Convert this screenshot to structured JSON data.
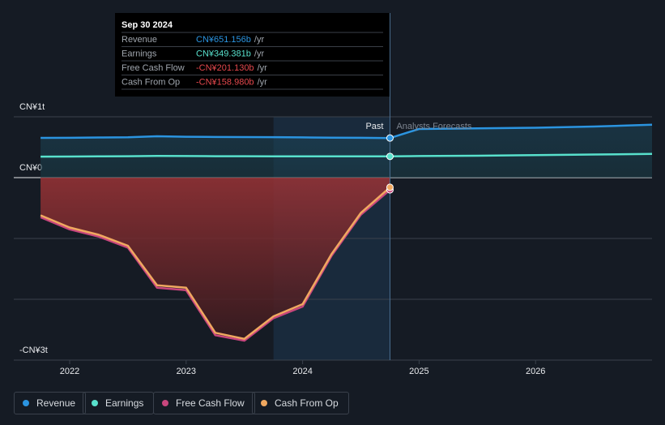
{
  "chart_data": {
    "type": "line",
    "xlim": [
      2021.52,
      2027.0
    ],
    "xticks": [
      2022,
      2023,
      2024,
      2025,
      2026
    ],
    "ylim": [
      -3,
      1
    ],
    "yticks": [
      {
        "value": 1,
        "label": "CN¥1t"
      },
      {
        "value": 0,
        "label": "CN¥0"
      },
      {
        "value": -1,
        "label": null
      },
      {
        "value": -2,
        "label": null
      },
      {
        "value": -3,
        "label": "-CN¥3t"
      }
    ],
    "grid": true,
    "divider_x": 2024.75,
    "past_label": "Past",
    "forecast_label": "Analysts Forecasts",
    "series": [
      {
        "name": "Revenue",
        "color": "#2b94e0",
        "x": [
          2021.75,
          2022.0,
          2022.25,
          2022.5,
          2022.75,
          2023.0,
          2023.25,
          2023.5,
          2023.75,
          2024.0,
          2024.25,
          2024.5,
          2024.75,
          2025.0,
          2025.5,
          2026.0,
          2026.5,
          2027.0
        ],
        "values": [
          0.653,
          0.655,
          0.66,
          0.663,
          0.68,
          0.672,
          0.668,
          0.667,
          0.666,
          0.662,
          0.658,
          0.655,
          0.651,
          0.8,
          0.81,
          0.82,
          0.84,
          0.87
        ]
      },
      {
        "name": "Earnings",
        "color": "#58e0cc",
        "x": [
          2021.75,
          2022.0,
          2022.25,
          2022.5,
          2022.75,
          2023.0,
          2023.25,
          2023.5,
          2023.75,
          2024.0,
          2024.25,
          2024.5,
          2024.75,
          2025.0,
          2025.5,
          2026.0,
          2026.5,
          2027.0
        ],
        "values": [
          0.345,
          0.347,
          0.35,
          0.352,
          0.358,
          0.355,
          0.352,
          0.352,
          0.351,
          0.35,
          0.35,
          0.349,
          0.349,
          0.355,
          0.36,
          0.37,
          0.38,
          0.39
        ]
      },
      {
        "name": "Free Cash Flow",
        "color": "#c8467d",
        "x": [
          2021.75,
          2022.0,
          2022.25,
          2022.5,
          2022.75,
          2023.0,
          2023.25,
          2023.5,
          2023.75,
          2024.0,
          2024.25,
          2024.5,
          2024.75
        ],
        "values": [
          -0.65,
          -0.85,
          -0.97,
          -1.15,
          -1.81,
          -1.85,
          -2.59,
          -2.68,
          -2.31,
          -2.12,
          -1.28,
          -0.61,
          -0.201
        ]
      },
      {
        "name": "Cash From Op",
        "color": "#f0a860",
        "x": [
          2021.75,
          2022.0,
          2022.25,
          2022.5,
          2022.75,
          2023.0,
          2023.25,
          2023.5,
          2023.75,
          2024.0,
          2024.25,
          2024.5,
          2024.75
        ],
        "values": [
          -0.62,
          -0.82,
          -0.94,
          -1.12,
          -1.77,
          -1.81,
          -2.55,
          -2.65,
          -2.28,
          -2.08,
          -1.25,
          -0.58,
          -0.159
        ]
      }
    ],
    "tooltip": {
      "date": "Sep 30 2024",
      "rows": [
        {
          "label": "Revenue",
          "value": "CN¥651.156b",
          "unit": "/yr"
        },
        {
          "label": "Earnings",
          "value": "CN¥349.381b",
          "unit": "/yr"
        },
        {
          "label": "Free Cash Flow",
          "value": "-CN¥201.130b",
          "unit": "/yr"
        },
        {
          "label": "Cash From Op",
          "value": "-CN¥158.980b",
          "unit": "/yr"
        }
      ]
    }
  }
}
